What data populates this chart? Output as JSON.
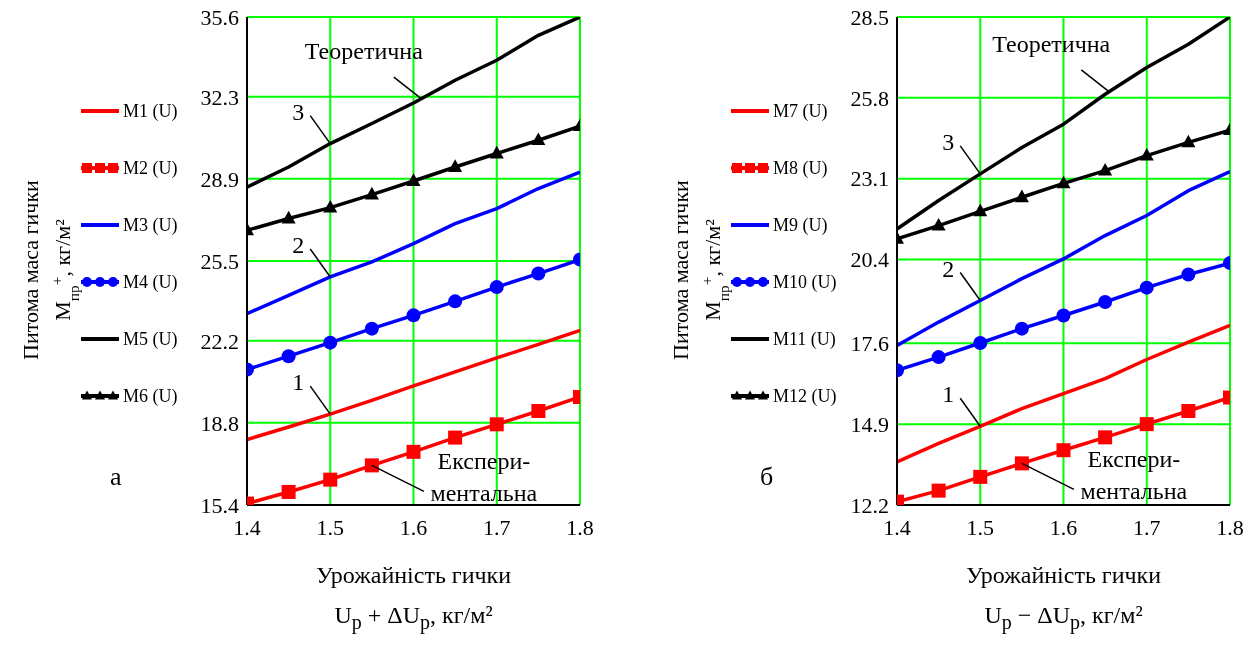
{
  "chart_data": [
    {
      "type": "line",
      "xlabel": "Урожайність гички\nU$_{р}$ + ΔU$_{р}$, кг/м²",
      "ylabel": "Питома маса гички\nM$_{пр}$$^{+}$, кг/м²",
      "x": [
        1.4,
        1.45,
        1.5,
        1.55,
        1.6,
        1.65,
        1.7,
        1.75,
        1.8
      ],
      "xlim": [
        1.4,
        1.8
      ],
      "xticks": [
        1.4,
        1.5,
        1.6,
        1.7,
        1.8
      ],
      "ylim": [
        15.4,
        35.6
      ],
      "yticks": [
        15.4,
        18.8,
        22.2,
        25.5,
        28.9,
        32.3,
        35.6
      ],
      "grid": true,
      "legend": "left",
      "series": [
        {
          "name": "M1 (U)",
          "color": "#ff0000",
          "marker": "none",
          "values": [
            18.11,
            18.63,
            19.16,
            19.73,
            20.33,
            20.91,
            21.49,
            22.05,
            22.63
          ]
        },
        {
          "name": "M2 (U)",
          "color": "#ff0000",
          "marker": "square",
          "values": [
            15.46,
            15.94,
            16.45,
            17.04,
            17.6,
            18.19,
            18.74,
            19.29,
            19.87
          ]
        },
        {
          "name": "M3 (U)",
          "color": "#0000ff",
          "marker": "none",
          "values": [
            23.32,
            24.08,
            24.84,
            25.46,
            26.22,
            27.05,
            27.67,
            28.5,
            29.18
          ]
        },
        {
          "name": "M4 (U)",
          "color": "#0000ff",
          "marker": "circle",
          "values": [
            21.01,
            21.56,
            22.12,
            22.7,
            23.25,
            23.83,
            24.42,
            24.98,
            25.56
          ]
        },
        {
          "name": "M5 (U)",
          "color": "#000000",
          "marker": "none",
          "values": [
            28.56,
            29.39,
            30.36,
            31.19,
            32.04,
            32.98,
            33.81,
            34.84,
            35.6
          ]
        },
        {
          "name": "M6 (U)",
          "color": "#000000",
          "marker": "triangle",
          "values": [
            26.77,
            27.26,
            27.71,
            28.25,
            28.81,
            29.39,
            29.95,
            30.5,
            31.08
          ]
        }
      ],
      "annotations": [
        {
          "text": "Теоретична",
          "x": 1.61,
          "y": 32.2
        },
        {
          "text": "3",
          "x": 1.5,
          "y": 30.36
        },
        {
          "text": "2",
          "x": 1.5,
          "y": 24.84
        },
        {
          "text": "1",
          "x": 1.5,
          "y": 19.16
        },
        {
          "text": "Експери-\nментальна",
          "x": 1.55,
          "y": 17.04
        },
        "а"
      ]
    },
    {
      "type": "line",
      "xlabel": "Урожайність гички\nU$_{р}$ − ΔU$_{р}$, кг/м²",
      "ylabel": "Питома маса гички\nM$_{пр}$$^{+}$, кг/м²",
      "x": [
        1.4,
        1.45,
        1.5,
        1.55,
        1.6,
        1.65,
        1.7,
        1.75,
        1.8
      ],
      "xlim": [
        1.4,
        1.8
      ],
      "xticks": [
        1.4,
        1.5,
        1.6,
        1.7,
        1.8
      ],
      "ylim": [
        12.2,
        28.5
      ],
      "yticks": [
        12.2,
        14.9,
        17.6,
        20.4,
        23.1,
        25.8,
        28.5
      ],
      "grid": true,
      "legend": "left",
      "series": [
        {
          "name": "M7 (U)",
          "color": "#ff0000",
          "marker": "none",
          "values": [
            13.64,
            14.26,
            14.83,
            15.42,
            15.92,
            16.42,
            17.06,
            17.64,
            18.2
          ]
        },
        {
          "name": "M8 (U)",
          "color": "#ff0000",
          "marker": "square",
          "values": [
            12.31,
            12.68,
            13.14,
            13.59,
            14.03,
            14.46,
            14.9,
            15.34,
            15.79
          ]
        },
        {
          "name": "M9 (U)",
          "color": "#0000ff",
          "marker": "none",
          "values": [
            17.53,
            18.31,
            19.03,
            19.76,
            20.42,
            21.2,
            21.87,
            22.7,
            23.34
          ]
        },
        {
          "name": "M10 (U)",
          "color": "#0000ff",
          "marker": "circle",
          "values": [
            16.7,
            17.14,
            17.61,
            18.09,
            18.53,
            18.98,
            19.46,
            19.9,
            20.28
          ]
        },
        {
          "name": "M11 (U)",
          "color": "#000000",
          "marker": "none",
          "values": [
            21.42,
            22.37,
            23.26,
            24.14,
            24.92,
            25.92,
            26.81,
            27.59,
            28.5
          ]
        },
        {
          "name": "M12 (U)",
          "color": "#000000",
          "marker": "triangle",
          "values": [
            21.09,
            21.53,
            22.01,
            22.48,
            22.94,
            23.37,
            23.87,
            24.31,
            24.72
          ]
        }
      ],
      "annotations": [
        {
          "text": "Теоретична",
          "x": 1.655,
          "y": 26.0
        },
        {
          "text": "3",
          "x": 1.5,
          "y": 23.26
        },
        {
          "text": "2",
          "x": 1.5,
          "y": 19.03
        },
        {
          "text": "1",
          "x": 1.5,
          "y": 14.83
        },
        {
          "text": "Експери-\nментальна",
          "x": 1.55,
          "y": 13.59
        },
        "б"
      ]
    }
  ]
}
